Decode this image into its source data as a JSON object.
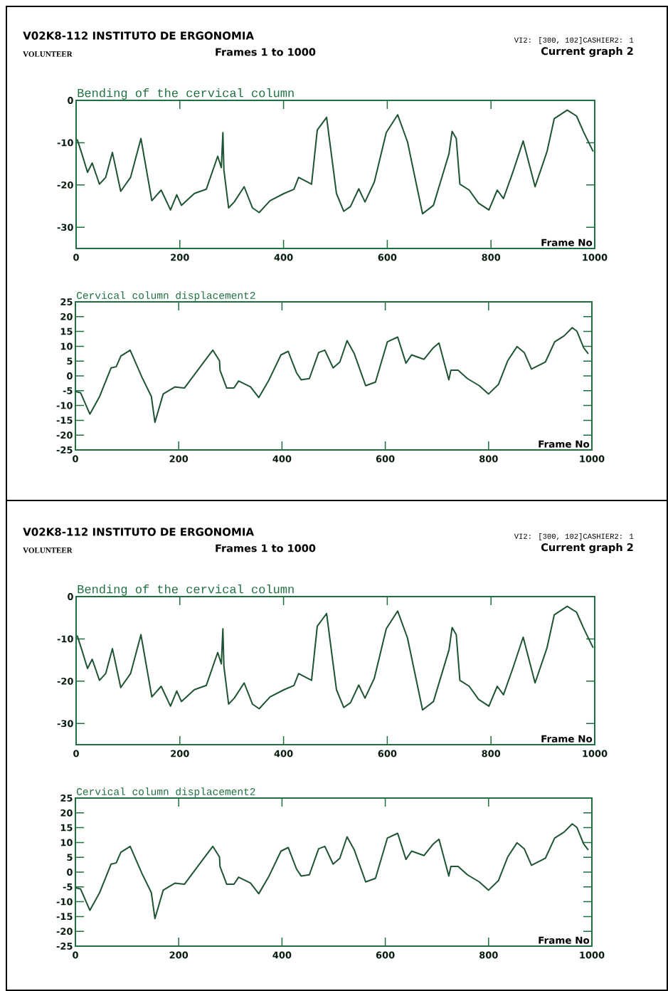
{
  "chart_data": [
    {
      "type": "line",
      "title": "Bending of the cervical column",
      "xlabel": "Frame No",
      "color": "#1e5434",
      "annotations": [
        "V02K8-112  INSTITUTO DE ERGONOMIA",
        "VOLUNTEER",
        "Frames 1 to 1000",
        "VI2: [300, 102]CASHIER2: 1",
        "Current graph 2"
      ],
      "xlim": [
        0,
        1000
      ],
      "ylim": [
        -35,
        0
      ],
      "xticks": [
        0,
        200,
        400,
        600,
        800,
        1000
      ],
      "yticks": [
        0,
        -10,
        -20,
        -30
      ],
      "x": [
        2,
        11,
        22,
        31,
        45,
        57,
        70,
        86,
        105,
        125,
        146,
        164,
        182,
        194,
        203,
        228,
        251,
        273,
        280,
        283,
        285,
        294,
        305,
        324,
        340,
        353,
        374,
        401,
        420,
        429,
        454,
        465,
        483,
        502,
        516,
        529,
        545,
        557,
        575,
        598,
        620,
        639,
        668,
        689,
        719,
        725,
        733,
        740,
        758,
        776,
        796,
        812,
        824,
        842,
        862,
        885,
        908,
        922,
        947,
        965,
        979,
        997
      ],
      "values": [
        -9.2,
        -12.6,
        -17,
        -14.8,
        -19.8,
        -18.2,
        -12.3,
        -21.5,
        -18.2,
        -9,
        -23.7,
        -21.2,
        -25.9,
        -22.3,
        -24.8,
        -22,
        -21,
        -13.2,
        -15.9,
        -7.6,
        -16.5,
        -25.4,
        -24,
        -20.4,
        -25.4,
        -26.5,
        -23.7,
        -22,
        -21,
        -18.2,
        -19.8,
        -7,
        -4,
        -22,
        -26.2,
        -25.1,
        -20.9,
        -24,
        -19.3,
        -7.6,
        -3.4,
        -9.8,
        -26.8,
        -24.8,
        -12.6,
        -7.3,
        -9,
        -19.8,
        -21.2,
        -24.3,
        -25.9,
        -21.2,
        -23.2,
        -17,
        -9.6,
        -20.4,
        -12.1,
        -4.3,
        -2.3,
        -3.7,
        -7.6,
        -12.1
      ]
    },
    {
      "type": "line",
      "title": "Cervical column displacement2",
      "xlabel": "Frame No",
      "color": "#1e5434",
      "xlim": [
        0,
        1000
      ],
      "ylim": [
        -25,
        25
      ],
      "xticks": [
        0,
        200,
        400,
        600,
        800,
        1000
      ],
      "yticks": [
        25,
        20,
        15,
        10,
        5,
        0,
        -5,
        -10,
        -15,
        -20,
        -25
      ],
      "x": [
        1,
        10,
        28,
        47,
        69,
        79,
        88,
        106,
        129,
        147,
        154,
        170,
        193,
        211,
        247,
        266,
        279,
        280,
        293,
        307,
        316,
        339,
        355,
        375,
        398,
        412,
        428,
        437,
        453,
        471,
        483,
        499,
        512,
        526,
        540,
        562,
        581,
        604,
        624,
        640,
        651,
        675,
        693,
        704,
        723,
        727,
        741,
        759,
        782,
        800,
        819,
        837,
        855,
        869,
        883,
        910,
        928,
        946,
        962,
        971,
        984,
        993
      ],
      "values": [
        -5.3,
        -5.7,
        -12.9,
        -6.9,
        2.7,
        3.1,
        6.7,
        8.7,
        -0.5,
        -6.9,
        -15.7,
        -6.1,
        -3.7,
        -4.1,
        4.3,
        8.7,
        5.1,
        1.9,
        -4.1,
        -4.1,
        -1.7,
        -3.7,
        -7.3,
        -1.3,
        7.1,
        8.3,
        1.1,
        -1.3,
        -0.9,
        7.9,
        8.7,
        2.7,
        4.7,
        11.9,
        7.5,
        -3.3,
        -2.1,
        11.5,
        13.1,
        4.3,
        7.1,
        5.6,
        9.5,
        11.1,
        -1.3,
        1.9,
        1.9,
        -0.9,
        -3.3,
        -6.1,
        -2.9,
        5.1,
        9.9,
        7.9,
        2.3,
        4.7,
        11.5,
        13.5,
        16.3,
        15.1,
        9.5,
        7.5
      ]
    },
    {
      "type": "line",
      "title": "Bending of the cervical column",
      "xlabel": "Frame No",
      "color": "#1e5434",
      "annotations": [
        "V02K8-112  INSTITUTO DE ERGONOMIA",
        "VOLUNTEER",
        "Frames 1 to 1000",
        "VI2: [300, 102]CASHIER2: 1",
        "Current graph 2"
      ],
      "xlim": [
        0,
        1000
      ],
      "ylim": [
        -35,
        0
      ],
      "xticks": [
        0,
        200,
        400,
        600,
        800,
        1000
      ],
      "yticks": [
        0,
        -10,
        -20,
        -30
      ],
      "x": [
        2,
        11,
        22,
        31,
        45,
        57,
        70,
        86,
        105,
        125,
        146,
        164,
        182,
        194,
        203,
        228,
        251,
        273,
        280,
        283,
        285,
        294,
        305,
        324,
        340,
        353,
        374,
        401,
        420,
        429,
        454,
        465,
        483,
        502,
        516,
        529,
        545,
        557,
        575,
        598,
        620,
        639,
        668,
        689,
        719,
        725,
        733,
        740,
        758,
        776,
        796,
        812,
        824,
        842,
        862,
        885,
        908,
        922,
        947,
        965,
        979,
        997
      ],
      "values": [
        -9.2,
        -12.6,
        -17,
        -14.8,
        -19.8,
        -18.2,
        -12.3,
        -21.5,
        -18.2,
        -9,
        -23.7,
        -21.2,
        -25.9,
        -22.3,
        -24.8,
        -22,
        -21,
        -13.2,
        -15.9,
        -7.6,
        -16.5,
        -25.4,
        -24,
        -20.4,
        -25.4,
        -26.5,
        -23.7,
        -22,
        -21,
        -18.2,
        -19.8,
        -7,
        -4,
        -22,
        -26.2,
        -25.1,
        -20.9,
        -24,
        -19.3,
        -7.6,
        -3.4,
        -9.8,
        -26.8,
        -24.8,
        -12.6,
        -7.3,
        -9,
        -19.8,
        -21.2,
        -24.3,
        -25.9,
        -21.2,
        -23.2,
        -17,
        -9.6,
        -20.4,
        -12.1,
        -4.3,
        -2.3,
        -3.7,
        -7.6,
        -12.1
      ]
    },
    {
      "type": "line",
      "title": "Cervical column displacement2",
      "xlabel": "Frame No",
      "color": "#1e5434",
      "xlim": [
        0,
        1000
      ],
      "ylim": [
        -25,
        25
      ],
      "xticks": [
        0,
        200,
        400,
        600,
        800,
        1000
      ],
      "yticks": [
        25,
        20,
        15,
        10,
        5,
        0,
        -5,
        -10,
        -15,
        -20,
        -25
      ],
      "x": [
        1,
        10,
        28,
        47,
        69,
        79,
        88,
        106,
        129,
        147,
        154,
        170,
        193,
        211,
        247,
        266,
        279,
        280,
        293,
        307,
        316,
        339,
        355,
        375,
        398,
        412,
        428,
        437,
        453,
        471,
        483,
        499,
        512,
        526,
        540,
        562,
        581,
        604,
        624,
        640,
        651,
        675,
        693,
        704,
        723,
        727,
        741,
        759,
        782,
        800,
        819,
        837,
        855,
        869,
        883,
        910,
        928,
        946,
        962,
        971,
        984,
        993
      ],
      "values": [
        -5.3,
        -5.7,
        -12.9,
        -6.9,
        2.7,
        3.1,
        6.7,
        8.7,
        -0.5,
        -6.9,
        -15.7,
        -6.1,
        -3.7,
        -4.1,
        4.3,
        8.7,
        5.1,
        1.9,
        -4.1,
        -4.1,
        -1.7,
        -3.7,
        -7.3,
        -1.3,
        7.1,
        8.3,
        1.1,
        -1.3,
        -0.9,
        7.9,
        8.7,
        2.7,
        4.7,
        11.9,
        7.5,
        -3.3,
        -2.1,
        11.5,
        13.1,
        4.3,
        7.1,
        5.6,
        9.5,
        11.1,
        -1.3,
        1.9,
        1.9,
        -0.9,
        -3.3,
        -6.1,
        -2.9,
        5.1,
        9.9,
        7.9,
        2.3,
        4.7,
        11.5,
        13.5,
        16.3,
        15.1,
        9.5,
        7.5
      ]
    }
  ]
}
